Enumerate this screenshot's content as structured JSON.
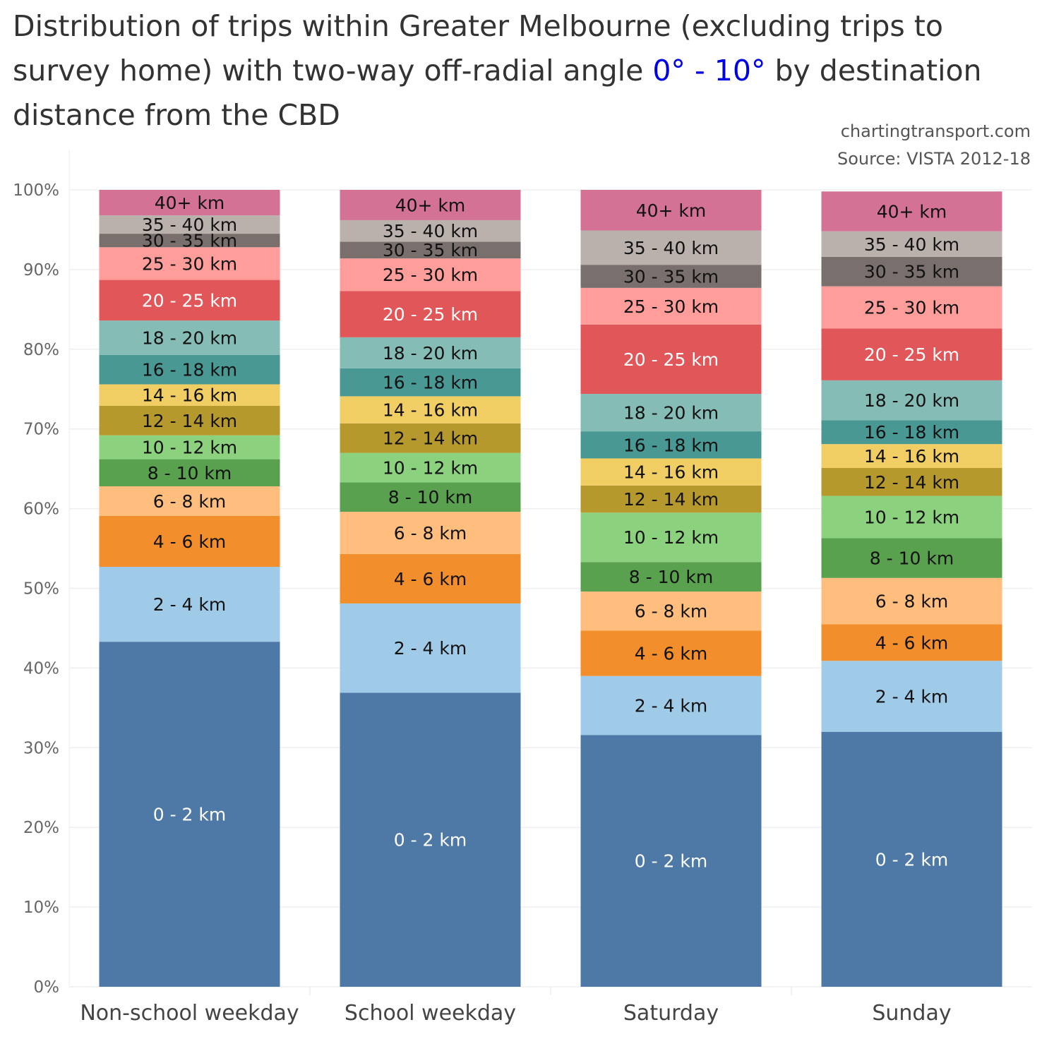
{
  "title": {
    "prefix": "Distribution of trips within Greater Melbourne (excluding trips to survey home) with two-way off-radial angle ",
    "highlight": "0° - 10°",
    "suffix": " by destination distance from the CBD"
  },
  "credits": {
    "site": "chartingtransport.com",
    "source": "Source: VISTA 2012-18"
  },
  "colors": {
    "0 - 2 km": "#4e79a7",
    "2 - 4 km": "#a0cbe8",
    "4 - 6 km": "#f28e2b",
    "6 - 8 km": "#ffbe7d",
    "8 - 10 km": "#59a14f",
    "10 - 12 km": "#8cd17d",
    "12 - 14 km": "#b6992d",
    "14 - 16 km": "#f1ce63",
    "16 - 18 km": "#499894",
    "18 - 20 km": "#86bcb6",
    "20 - 25 km": "#e15759",
    "25 - 30 km": "#ff9d9a",
    "30 - 35 km": "#79706e",
    "35 - 40 km": "#bab0ac",
    "40+ km": "#d37295"
  },
  "label_colors": {
    "0 - 2 km": "#ffffff",
    "2 - 4 km": "#111111",
    "4 - 6 km": "#111111",
    "6 - 8 km": "#111111",
    "8 - 10 km": "#111111",
    "10 - 12 km": "#111111",
    "12 - 14 km": "#111111",
    "14 - 16 km": "#111111",
    "16 - 18 km": "#111111",
    "18 - 20 km": "#111111",
    "20 - 25 km": "#ffffff",
    "25 - 30 km": "#111111",
    "30 - 35 km": "#111111",
    "35 - 40 km": "#111111",
    "40+ km": "#111111"
  },
  "chart_data": {
    "type": "bar",
    "stacked": true,
    "categories": [
      "Non-school weekday",
      "School weekday",
      "Saturday",
      "Sunday"
    ],
    "ylim": [
      0,
      100
    ],
    "yticks": [
      0,
      10,
      20,
      30,
      40,
      50,
      60,
      70,
      80,
      90,
      100
    ],
    "ytick_labels": [
      "0%",
      "10%",
      "20%",
      "30%",
      "40%",
      "50%",
      "60%",
      "70%",
      "80%",
      "90%",
      "100%"
    ],
    "grid": true,
    "series": [
      {
        "name": "0 - 2 km",
        "values": [
          43.3,
          36.9,
          31.6,
          32.0
        ]
      },
      {
        "name": "2 - 4 km",
        "values": [
          9.4,
          11.2,
          7.4,
          8.9
        ]
      },
      {
        "name": "4 - 6 km",
        "values": [
          6.4,
          6.2,
          5.7,
          4.6
        ]
      },
      {
        "name": "6 - 8 km",
        "values": [
          3.7,
          5.3,
          4.9,
          5.8
        ]
      },
      {
        "name": "8 - 10 km",
        "values": [
          3.4,
          3.7,
          3.7,
          5.0
        ]
      },
      {
        "name": "10 - 12 km",
        "values": [
          3.0,
          3.7,
          6.2,
          5.3
        ]
      },
      {
        "name": "12 - 14 km",
        "values": [
          3.7,
          3.7,
          3.4,
          3.5
        ]
      },
      {
        "name": "14 - 16 km",
        "values": [
          2.7,
          3.4,
          3.4,
          3.0
        ]
      },
      {
        "name": "16 - 18 km",
        "values": [
          3.7,
          3.5,
          3.4,
          3.0
        ]
      },
      {
        "name": "18 - 20 km",
        "values": [
          4.3,
          3.9,
          4.7,
          5.0
        ]
      },
      {
        "name": "20 - 25 km",
        "values": [
          5.1,
          5.8,
          8.7,
          6.5
        ]
      },
      {
        "name": "25 - 30 km",
        "values": [
          4.1,
          4.1,
          4.6,
          5.3
        ]
      },
      {
        "name": "30 - 35 km",
        "values": [
          1.7,
          2.1,
          2.9,
          3.7
        ]
      },
      {
        "name": "35 - 40 km",
        "values": [
          2.3,
          2.7,
          4.3,
          3.2
        ]
      },
      {
        "name": "40+ km",
        "values": [
          3.2,
          3.8,
          5.1,
          5.0
        ]
      }
    ]
  }
}
